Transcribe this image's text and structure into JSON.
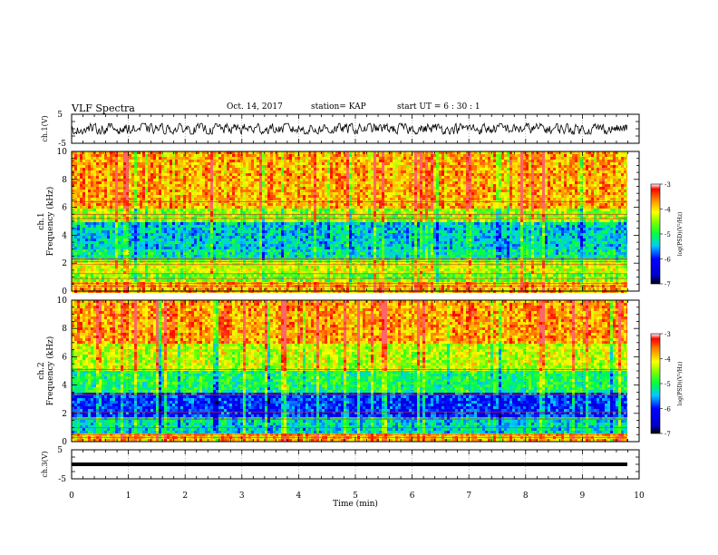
{
  "header": {
    "title": "VLF Spectra",
    "date": "Oct. 14, 2017",
    "station": "station= KAP",
    "start": "start  UT =  6 : 30 : 1"
  },
  "chart_data": [
    {
      "type": "line",
      "panel": "waveform-ch1",
      "ylabel": "ch.1(V)",
      "ylim": [
        -5,
        5
      ],
      "yticks": [
        "5",
        "-5"
      ],
      "xlim": [
        0,
        10
      ],
      "series": [
        {
          "note_color": "#000000",
          "amplitude_range": [
            -1.8,
            1.8
          ]
        }
      ]
    },
    {
      "type": "heatmap",
      "panel": "spectrogram-ch1",
      "ylabel": "ch.1\nFrequency (kHz)",
      "ylabel_lines": [
        "ch.1",
        "Frequency (kHz)"
      ],
      "ylim": [
        0,
        10
      ],
      "yticks": [
        "0",
        "2",
        "4",
        "6",
        "8",
        "10"
      ],
      "xlim": [
        0,
        9.83
      ],
      "colorbar": {
        "label": "log(PSD)(V²/Hz)",
        "range": [
          -7,
          -3
        ],
        "ticks": [
          "-3",
          "-4",
          "-5",
          "-6",
          "-7"
        ]
      },
      "bands_khz": [
        {
          "from": 0,
          "to": 0.6,
          "level": -3.8
        },
        {
          "from": 0.6,
          "to": 1.2,
          "level": -4.6
        },
        {
          "from": 1.2,
          "to": 2.2,
          "level": -4.3
        },
        {
          "from": 2.2,
          "to": 3.0,
          "level": -5.2
        },
        {
          "from": 3.0,
          "to": 5.0,
          "level": -5.4
        },
        {
          "from": 5.0,
          "to": 6.0,
          "level": -4.5
        },
        {
          "from": 6.0,
          "to": 10.0,
          "level": -3.8
        }
      ]
    },
    {
      "type": "heatmap",
      "panel": "spectrogram-ch2",
      "ylabel": "ch.2\nFrequency (kHz)",
      "ylabel_lines": [
        "ch.2",
        "Frequency (kHz)"
      ],
      "ylim": [
        0,
        10
      ],
      "yticks": [
        "0",
        "2",
        "4",
        "6",
        "8",
        "10"
      ],
      "xlim": [
        0,
        9.83
      ],
      "colorbar": {
        "label": "log(PSD)(V²/Hz)",
        "range": [
          -7,
          -3
        ],
        "ticks": [
          "-3",
          "-4",
          "-5",
          "-6",
          "-7"
        ]
      },
      "bands_khz": [
        {
          "from": 0,
          "to": 0.6,
          "level": -3.8
        },
        {
          "from": 0.6,
          "to": 1.8,
          "level": -5.3
        },
        {
          "from": 1.8,
          "to": 3.5,
          "level": -5.9
        },
        {
          "from": 3.5,
          "to": 5.0,
          "level": -5.0
        },
        {
          "from": 5.0,
          "to": 7.0,
          "level": -4.3
        },
        {
          "from": 7.0,
          "to": 10.0,
          "level": -3.7
        }
      ]
    },
    {
      "type": "line",
      "panel": "waveform-ch3",
      "ylabel": "ch.3(V)",
      "ylim": [
        -5,
        5
      ],
      "yticks": [
        "5",
        "-5"
      ],
      "xlim": [
        0,
        9.83
      ],
      "series": [
        {
          "constant_value": 0
        }
      ]
    }
  ],
  "x_axis": {
    "label": "Time (min)",
    "ticks": [
      "0",
      "1",
      "2",
      "3",
      "4",
      "5",
      "6",
      "7",
      "8",
      "9",
      "10"
    ]
  }
}
